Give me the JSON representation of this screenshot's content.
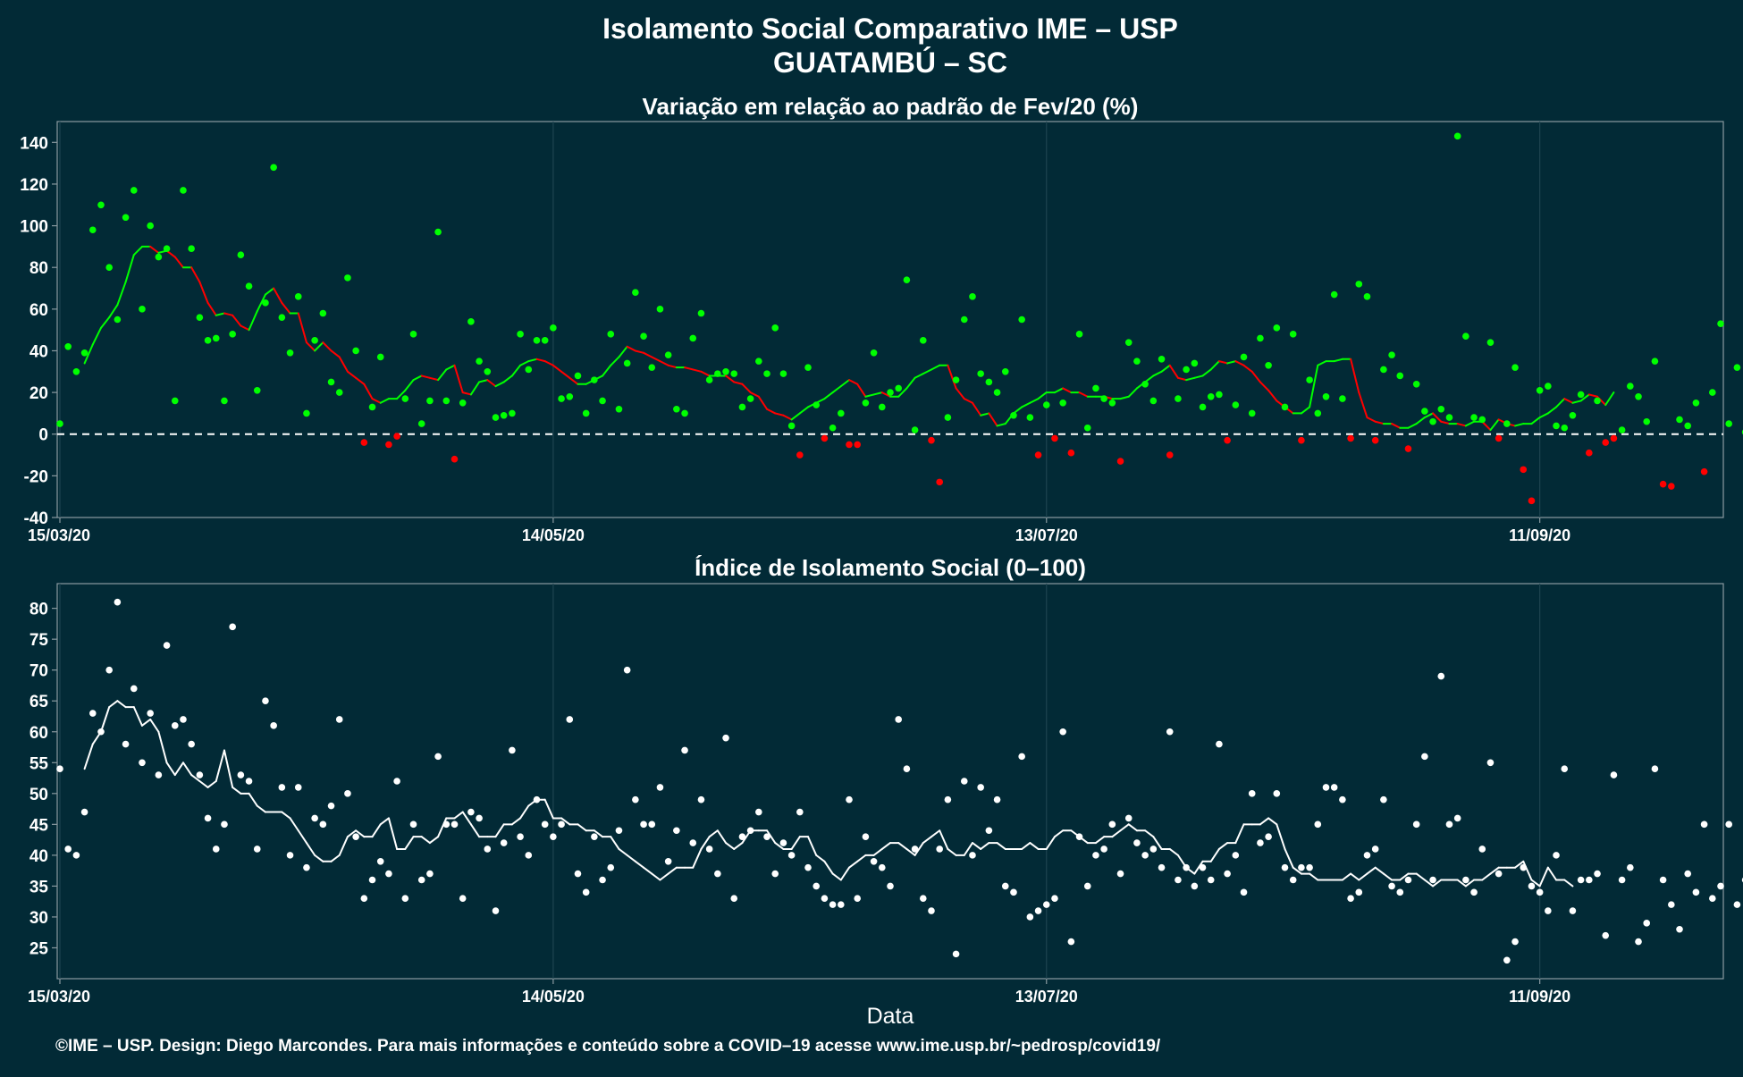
{
  "title": "Isolamento Social Comparativo IME – USP",
  "subtitle": "GUATAMBÚ – SC",
  "xlabel": "Data",
  "caption": "©IME – USP. Design: Diego Marcondes. Para mais informações e conteúdo sobre a COVID–19 acesse www.ime.usp.br/~pedrosp/covid19/",
  "colors": {
    "background": "#022a36",
    "frame": "#8a9aa0",
    "text": "#ffffff",
    "positive": "#00ff00",
    "negative": "#ff0000",
    "index": "#ffffff"
  },
  "chart_data": [
    {
      "type": "scatter",
      "title": "Variação em relação ao padrão de Fev/20 (%)",
      "x_start": "15/03/20",
      "x_end": "03/10/20",
      "x_ticks": [
        "15/03/20",
        "14/05/20",
        "13/07/20",
        "11/09/20"
      ],
      "ylim": [
        -40,
        150
      ],
      "y_ticks": [
        -40,
        -20,
        0,
        20,
        40,
        60,
        80,
        100,
        120,
        140
      ],
      "reference_line": 0,
      "grid": "vertical",
      "series": [
        {
          "kind": "points",
          "values": [
            5,
            42,
            30,
            39,
            98,
            110,
            80,
            55,
            104,
            117,
            60,
            100,
            85,
            89,
            16,
            117,
            89,
            56,
            45,
            46,
            16,
            48,
            86,
            71,
            21,
            63,
            128,
            56,
            39,
            66,
            10,
            45,
            58,
            25,
            20,
            75,
            40,
            -4,
            13,
            37,
            -5,
            -1,
            17,
            48,
            5,
            16,
            97,
            16,
            -12,
            15,
            54,
            35,
            30,
            8,
            9,
            10,
            48,
            31,
            45,
            45,
            51,
            17,
            18,
            28,
            10,
            26,
            16,
            48,
            12,
            34,
            68,
            47,
            32,
            60,
            38,
            12,
            10,
            46,
            58,
            26,
            29,
            30,
            29,
            13,
            17,
            35,
            29,
            51,
            29,
            4,
            -10,
            32,
            14,
            -2,
            3,
            10,
            -5,
            -5,
            15,
            39,
            13,
            20,
            22,
            74,
            2,
            45,
            -3,
            -23,
            8,
            26,
            55,
            66,
            29,
            25,
            20,
            30,
            9,
            55,
            8,
            -10,
            14,
            -2,
            15,
            -9,
            48,
            3,
            22,
            17,
            15,
            -13,
            44,
            35,
            24,
            16,
            36,
            -10,
            17,
            31,
            34,
            13,
            18,
            19,
            -3,
            14,
            37,
            10,
            46,
            33,
            51,
            13,
            48,
            -3,
            26,
            10,
            18,
            67,
            17,
            -2,
            72,
            66,
            -3,
            31,
            38,
            28,
            -7,
            24,
            11,
            6,
            12,
            8,
            143,
            47,
            8,
            7,
            44,
            -2,
            5,
            32,
            -17,
            -32,
            21,
            23,
            4,
            3,
            9,
            19,
            -9,
            16,
            -4,
            -2,
            2,
            23,
            18,
            6,
            35,
            -24,
            -25,
            7,
            4,
            15,
            -18,
            20,
            53,
            5,
            32,
            1,
            24,
            -1,
            21,
            10,
            48
          ]
        },
        {
          "kind": "line",
          "smoothing": "7-day moving average",
          "line_start_date": "18/03/20",
          "values": [
            34,
            43,
            51,
            56,
            62,
            73,
            86,
            90,
            90,
            87,
            88,
            85,
            80,
            80,
            73,
            63,
            57,
            58,
            57,
            52,
            50,
            59,
            67,
            70,
            63,
            58,
            58,
            44,
            40,
            44,
            40,
            37,
            30,
            27,
            24,
            17,
            15,
            17,
            17,
            21,
            26,
            28,
            27,
            26,
            31,
            33,
            20,
            19,
            25,
            26,
            23,
            25,
            28,
            33,
            35,
            36,
            35,
            33,
            30,
            27,
            24,
            24,
            26,
            28,
            33,
            37,
            42,
            40,
            39,
            37,
            35,
            33,
            32,
            32,
            31,
            30,
            28,
            28,
            28,
            25,
            24,
            20,
            18,
            12,
            10,
            9,
            7,
            10,
            13,
            15,
            17,
            20,
            23,
            26,
            24,
            18,
            19,
            20,
            18,
            18,
            22,
            27,
            29,
            31,
            33,
            33,
            22,
            17,
            15,
            9,
            10,
            4,
            5,
            10,
            13,
            15,
            17,
            20,
            20,
            22,
            20,
            20,
            18,
            18,
            18,
            17,
            17,
            18,
            22,
            25,
            28,
            30,
            33,
            27,
            26,
            27,
            28,
            31,
            35,
            34,
            35,
            33,
            30,
            25,
            21,
            16,
            13,
            10,
            10,
            13,
            33,
            35,
            35,
            36,
            36,
            20,
            8,
            6,
            5,
            5,
            3,
            3,
            5,
            8,
            10,
            6,
            5,
            5,
            4,
            6,
            6,
            2,
            7,
            5,
            4,
            5,
            5,
            8,
            10,
            13,
            17,
            15,
            16,
            19,
            18,
            14,
            20
          ]
        }
      ]
    },
    {
      "type": "scatter",
      "title": "Índice de Isolamento Social (0–100)",
      "x_start": "15/03/20",
      "x_end": "03/10/20",
      "x_ticks": [
        "15/03/20",
        "14/05/20",
        "13/07/20",
        "11/09/20"
      ],
      "ylim": [
        20,
        84
      ],
      "y_ticks": [
        25,
        30,
        35,
        40,
        45,
        50,
        55,
        60,
        65,
        70,
        75,
        80
      ],
      "grid": "vertical",
      "series": [
        {
          "kind": "points",
          "values": [
            54,
            41,
            40,
            47,
            63,
            60,
            70,
            81,
            58,
            67,
            55,
            63,
            53,
            74,
            61,
            62,
            58,
            53,
            46,
            41,
            45,
            77,
            53,
            52,
            41,
            65,
            61,
            51,
            40,
            51,
            38,
            46,
            45,
            48,
            62,
            50,
            43,
            33,
            36,
            39,
            37,
            52,
            33,
            45,
            36,
            37,
            56,
            45,
            45,
            33,
            47,
            46,
            41,
            31,
            42,
            57,
            43,
            40,
            49,
            45,
            43,
            45,
            62,
            37,
            34,
            43,
            36,
            38,
            44,
            70,
            49,
            45,
            45,
            51,
            39,
            44,
            57,
            42,
            49,
            41,
            37,
            59,
            33,
            43,
            44,
            47,
            43,
            37,
            42,
            40,
            47,
            38,
            35,
            33,
            32,
            32,
            49,
            33,
            43,
            39,
            38,
            35,
            62,
            54,
            41,
            33,
            31,
            41,
            49,
            24,
            52,
            40,
            51,
            44,
            49,
            35,
            34,
            56,
            30,
            31,
            32,
            33,
            60,
            26,
            43,
            35,
            40,
            41,
            45,
            37,
            46,
            42,
            40,
            41,
            38,
            60,
            36,
            38,
            35,
            38,
            36,
            58,
            37,
            40,
            34,
            50,
            42,
            43,
            50,
            38,
            36,
            38,
            38,
            45,
            51,
            51,
            49,
            33,
            34,
            40,
            41,
            49,
            35,
            34,
            36,
            45,
            56,
            36,
            69,
            45,
            46,
            36,
            34,
            41,
            55,
            37,
            23,
            26,
            38,
            35,
            34,
            31,
            40,
            54,
            31,
            36,
            36,
            37,
            27,
            53,
            36,
            38,
            26,
            29,
            54,
            36,
            32,
            28,
            37,
            34,
            45,
            33,
            35,
            45,
            32,
            36,
            38,
            37,
            47
          ]
        },
        {
          "kind": "line",
          "smoothing": "7-day moving average",
          "line_start_date": "18/03/20",
          "values": [
            54,
            58,
            60,
            64,
            65,
            64,
            64,
            61,
            62,
            60,
            55,
            53,
            55,
            53,
            52,
            51,
            52,
            57,
            51,
            50,
            50,
            48,
            47,
            47,
            47,
            46,
            44,
            42,
            40,
            39,
            39,
            40,
            43,
            44,
            43,
            43,
            45,
            46,
            41,
            41,
            43,
            43,
            42,
            43,
            46,
            46,
            47,
            45,
            43,
            43,
            43,
            45,
            45,
            46,
            48,
            49,
            49,
            46,
            46,
            45,
            45,
            44,
            44,
            43,
            43,
            41,
            40,
            39,
            38,
            37,
            36,
            37,
            38,
            38,
            38,
            41,
            43,
            44,
            42,
            41,
            42,
            44,
            44,
            44,
            42,
            41,
            41,
            43,
            43,
            40,
            39,
            37,
            36,
            38,
            39,
            40,
            40,
            41,
            42,
            42,
            41,
            40,
            42,
            43,
            44,
            41,
            40,
            40,
            42,
            41,
            42,
            42,
            41,
            41,
            41,
            42,
            41,
            41,
            43,
            44,
            44,
            43,
            42,
            42,
            43,
            43,
            44,
            45,
            44,
            44,
            43,
            41,
            41,
            40,
            38,
            37,
            39,
            39,
            41,
            42,
            42,
            45,
            45,
            45,
            46,
            45,
            41,
            38,
            37,
            37,
            36,
            36,
            36,
            36,
            37,
            36,
            37,
            38,
            37,
            36,
            36,
            37,
            37,
            36,
            35,
            36,
            36,
            36,
            35,
            36,
            36,
            37,
            38,
            38,
            38,
            39,
            36,
            35,
            38,
            36,
            36,
            35
          ]
        }
      ]
    }
  ]
}
